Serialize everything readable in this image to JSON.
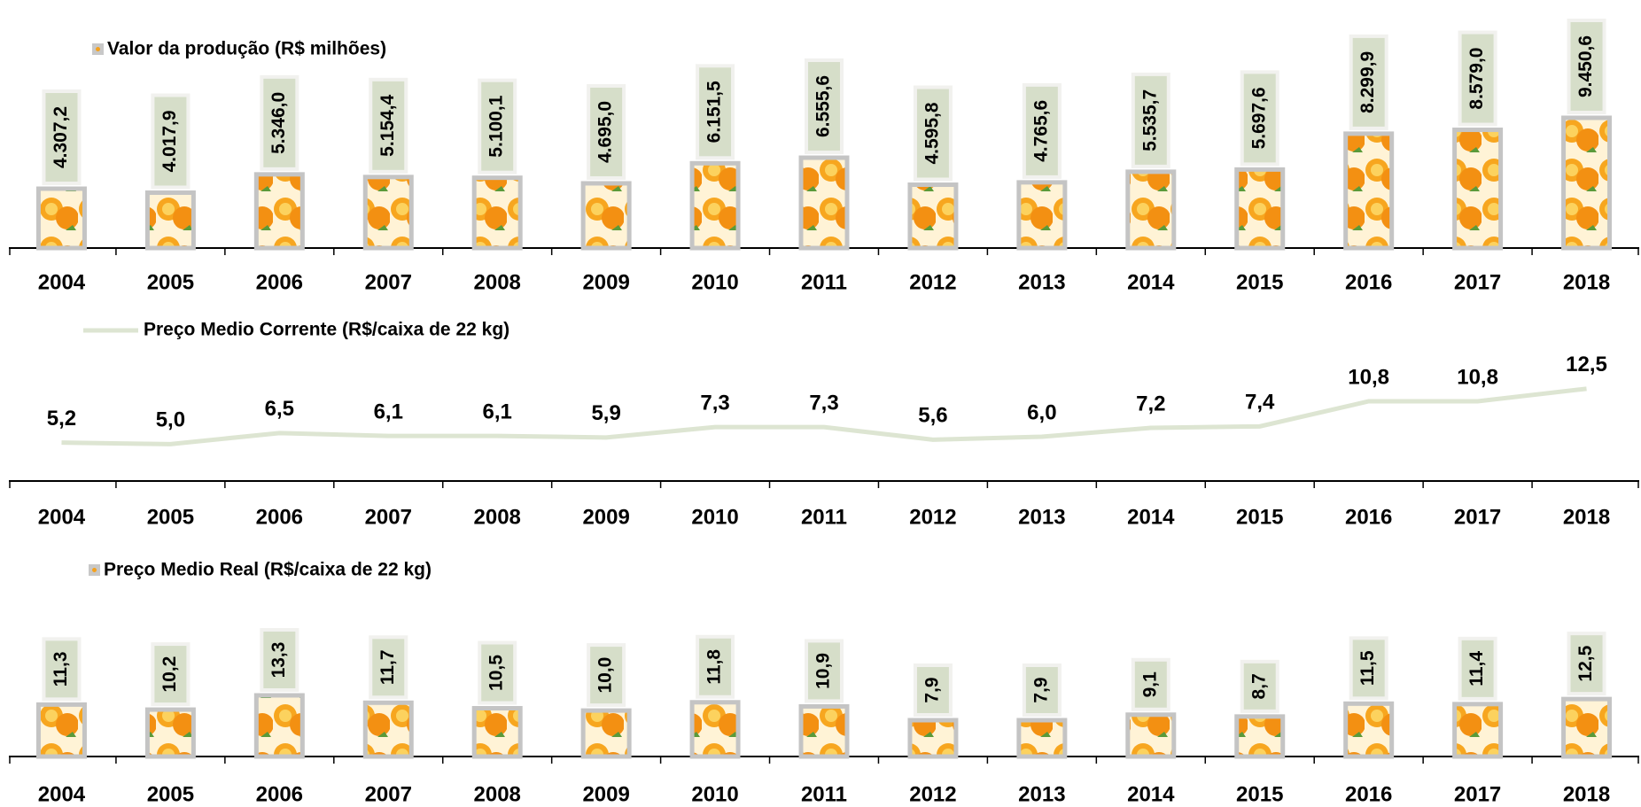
{
  "chart_data": [
    {
      "type": "bar",
      "legend": "top-left",
      "categories": [
        "2004",
        "2005",
        "2006",
        "2007",
        "2008",
        "2009",
        "2010",
        "2011",
        "2012",
        "2013",
        "2014",
        "2015",
        "2016",
        "2017",
        "2018"
      ],
      "series": [
        {
          "name": "Valor da produção (R$ milhões)",
          "color": "#f5a11c",
          "values": [
            4307.2,
            4017.9,
            5346.0,
            5154.4,
            5100.1,
            4695.0,
            6151.5,
            6555.6,
            4595.8,
            4765.6,
            5535.7,
            5697.6,
            8299.9,
            8579.0,
            9450.6
          ],
          "value_labels": [
            "4.307,2",
            "4.017,9",
            "5.346,0",
            "5.154,4",
            "5.100,1",
            "4.695,0",
            "6.151,5",
            "6.555,6",
            "4.595,8",
            "4.765,6",
            "5.535,7",
            "5.697,6",
            "8.299,9",
            "8.579,0",
            "9.450,6"
          ]
        }
      ],
      "ylim": [
        0,
        18000
      ]
    },
    {
      "type": "line",
      "legend": "top-left",
      "categories": [
        "2004",
        "2005",
        "2006",
        "2007",
        "2008",
        "2009",
        "2010",
        "2011",
        "2012",
        "2013",
        "2014",
        "2015",
        "2016",
        "2017",
        "2018"
      ],
      "series": [
        {
          "name": "Preço Medio Corrente (R$/caixa de 22 kg)",
          "color": "#dde5d2",
          "values": [
            5.2,
            5.0,
            6.5,
            6.1,
            6.1,
            5.9,
            7.3,
            7.3,
            5.6,
            6.0,
            7.2,
            7.4,
            10.8,
            10.8,
            12.5
          ],
          "value_labels": [
            "5,2",
            "5,0",
            "6,5",
            "6,1",
            "6,1",
            "5,9",
            "7,3",
            "7,3",
            "5,6",
            "6,0",
            "7,2",
            "7,4",
            "10,8",
            "10,8",
            "12,5"
          ]
        }
      ],
      "ylim": [
        0,
        18
      ]
    },
    {
      "type": "bar",
      "legend": "top-left",
      "categories": [
        "2004",
        "2005",
        "2006",
        "2007",
        "2008",
        "2009",
        "2010",
        "2011",
        "2012",
        "2013",
        "2014",
        "2015",
        "2016",
        "2017",
        "2018"
      ],
      "series": [
        {
          "name": "Preço Medio Real (R$/caixa de 22 kg)",
          "color": "#f5a11c",
          "values": [
            11.3,
            10.2,
            13.3,
            11.7,
            10.5,
            10.0,
            11.8,
            10.9,
            7.9,
            7.9,
            9.1,
            8.7,
            11.5,
            11.4,
            12.5
          ],
          "value_labels": [
            "11,3",
            "10,2",
            "13,3",
            "11,7",
            "10,5",
            "10,0",
            "11,8",
            "10,9",
            "7,9",
            "7,9",
            "9,1",
            "8,7",
            "11,5",
            "11,4",
            "12,5"
          ]
        }
      ],
      "ylim": [
        0,
        37
      ]
    }
  ]
}
